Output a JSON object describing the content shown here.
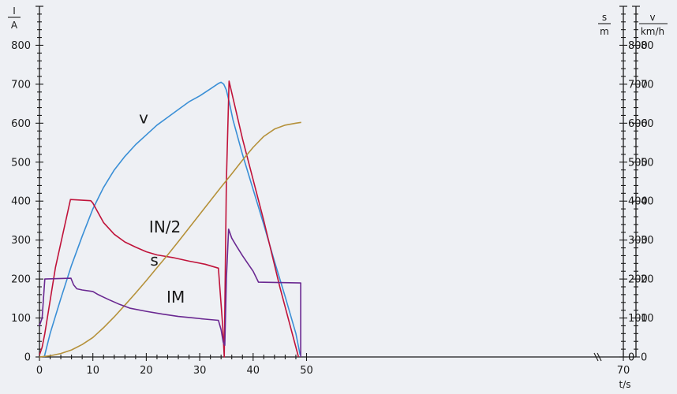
{
  "chart_data": {
    "type": "line",
    "x_axis": {
      "unit": "t/s",
      "range": [
        0,
        50
      ],
      "ticks": [
        "0",
        "10",
        "20",
        "30",
        "40",
        "50",
        "70"
      ]
    },
    "left_axis": {
      "unit_num": "I",
      "unit_den": "A",
      "range": [
        0,
        900
      ],
      "ticks": [
        "0",
        "100",
        "200",
        "300",
        "400",
        "500",
        "600",
        "700",
        "800"
      ]
    },
    "right_axis_s": {
      "unit_num": "s",
      "unit_den": "m",
      "range": [
        0,
        900
      ],
      "ticks": [
        "0",
        "100",
        "200",
        "300",
        "400",
        "500",
        "600",
        "700",
        "800"
      ]
    },
    "right_axis_v": {
      "unit_num": "v",
      "unit_den": "km/h",
      "range": [
        0,
        90
      ],
      "ticks": [
        "0",
        "10",
        "20",
        "30",
        "40",
        "50",
        "60",
        "70",
        "80"
      ]
    },
    "series": [
      {
        "name": "v",
        "color": "#3a8fd6",
        "axis": "v",
        "label_at": [
          19.5,
          60
        ],
        "points": [
          [
            0.9,
            0
          ],
          [
            2,
            6
          ],
          [
            4,
            15
          ],
          [
            6,
            23.5
          ],
          [
            8,
            31
          ],
          [
            10,
            38
          ],
          [
            12,
            43.5
          ],
          [
            14,
            48
          ],
          [
            16,
            51.5
          ],
          [
            18,
            54.5
          ],
          [
            20,
            57
          ],
          [
            22,
            59.5
          ],
          [
            24,
            61.5
          ],
          [
            26,
            63.5
          ],
          [
            28,
            65.5
          ],
          [
            30,
            67
          ],
          [
            32,
            68.8
          ],
          [
            33.5,
            70.2
          ],
          [
            34,
            70.5
          ],
          [
            34.5,
            70
          ],
          [
            35,
            68.5
          ],
          [
            35.6,
            65
          ],
          [
            36.2,
            61
          ],
          [
            38,
            52
          ],
          [
            40,
            43
          ],
          [
            42,
            34
          ],
          [
            44,
            24.5
          ],
          [
            46,
            15.5
          ],
          [
            48,
            6
          ],
          [
            48.8,
            0.5
          ]
        ]
      },
      {
        "name": "IN/2",
        "color": "#c0133a",
        "axis": "I",
        "label_at": [
          23.5,
          320
        ],
        "points": [
          [
            0,
            5
          ],
          [
            0.5,
            25
          ],
          [
            1,
            60
          ],
          [
            3,
            230
          ],
          [
            5.8,
            404
          ],
          [
            9.6,
            401
          ],
          [
            10,
            395
          ],
          [
            12,
            345
          ],
          [
            14,
            315
          ],
          [
            16,
            295
          ],
          [
            18,
            282
          ],
          [
            20,
            270
          ],
          [
            22,
            262
          ],
          [
            25,
            255
          ],
          [
            28,
            246
          ],
          [
            31,
            238
          ],
          [
            33.5,
            228
          ],
          [
            34.3,
            80
          ],
          [
            34.6,
            0
          ],
          [
            35,
            450
          ],
          [
            35.5,
            708
          ],
          [
            38,
            560
          ],
          [
            42,
            350
          ],
          [
            45,
            180
          ],
          [
            48.5,
            0
          ]
        ]
      },
      {
        "name": "s",
        "color": "#b5913a",
        "axis": "s",
        "label_at": [
          21.5,
          235
        ],
        "points": [
          [
            0,
            0
          ],
          [
            2,
            3
          ],
          [
            4,
            9
          ],
          [
            6,
            18
          ],
          [
            8,
            32
          ],
          [
            10,
            50
          ],
          [
            12,
            75
          ],
          [
            14,
            103
          ],
          [
            16,
            133
          ],
          [
            18,
            164
          ],
          [
            20,
            196
          ],
          [
            22,
            229
          ],
          [
            24,
            262
          ],
          [
            26,
            296
          ],
          [
            28,
            331
          ],
          [
            30,
            366
          ],
          [
            32,
            401
          ],
          [
            34,
            436
          ],
          [
            36,
            470
          ],
          [
            38,
            505
          ],
          [
            40,
            538
          ],
          [
            42,
            566
          ],
          [
            44,
            585
          ],
          [
            46,
            595
          ],
          [
            48,
            600
          ],
          [
            49,
            602
          ]
        ]
      },
      {
        "name": "IM",
        "color": "#6a2891",
        "axis": "I",
        "label_at": [
          25.5,
          140
        ],
        "points": [
          [
            0,
            80
          ],
          [
            0.5,
            100
          ],
          [
            1,
            200
          ],
          [
            5.9,
            202
          ],
          [
            6.4,
            185
          ],
          [
            7,
            175
          ],
          [
            8,
            172
          ],
          [
            10,
            168
          ],
          [
            11,
            160
          ],
          [
            13,
            147
          ],
          [
            15,
            135
          ],
          [
            17,
            125
          ],
          [
            20,
            117
          ],
          [
            23,
            110
          ],
          [
            26,
            104
          ],
          [
            29,
            100
          ],
          [
            31,
            97
          ],
          [
            33.5,
            94
          ],
          [
            34,
            70
          ],
          [
            34.4,
            38
          ],
          [
            34.7,
            30
          ],
          [
            35,
            200
          ],
          [
            35.4,
            328
          ],
          [
            36,
            305
          ],
          [
            37,
            282
          ],
          [
            38,
            260
          ],
          [
            39,
            240
          ],
          [
            40,
            220
          ],
          [
            41,
            192
          ],
          [
            45,
            191
          ],
          [
            48.9,
            190
          ],
          [
            48.9,
            0
          ]
        ]
      }
    ]
  }
}
